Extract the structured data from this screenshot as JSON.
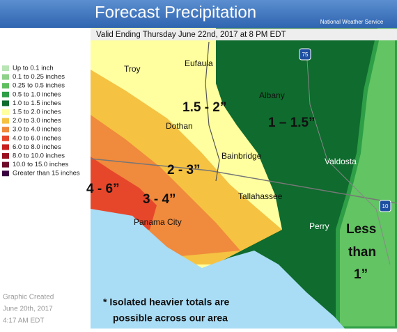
{
  "header": {
    "title": "Forecast Precipitation",
    "agency": "National Weather Service"
  },
  "subtitle": "Valid Ending Thursday June 22nd, 2017 at 8 PM EDT",
  "legend": [
    {
      "label": "Up to 0.1 inch",
      "color": "#b9e4b4"
    },
    {
      "label": "0.1 to 0.25 inches",
      "color": "#8fd18a"
    },
    {
      "label": "0.25 to 0.5 inches",
      "color": "#5fbf5f"
    },
    {
      "label": "0.5 to 1.0 inches",
      "color": "#2e9e47"
    },
    {
      "label": "1.0 to 1.5 inches",
      "color": "#0f6b2e"
    },
    {
      "label": "1.5 to 2.0 inches",
      "color": "#ffffa0"
    },
    {
      "label": "2.0 to 3.0 inches",
      "color": "#f5c242"
    },
    {
      "label": "3.0 to 4.0 inches",
      "color": "#f08a3c"
    },
    {
      "label": "4.0 to 6.0 inches",
      "color": "#e6472b"
    },
    {
      "label": "6.0 to 8.0 inches",
      "color": "#c81e1e"
    },
    {
      "label": "8.0 to 10.0 inches",
      "color": "#9b1020"
    },
    {
      "label": "10.0 to 15.0 inches",
      "color": "#6e0a2a"
    },
    {
      "label": "Greater than 15 inches",
      "color": "#3a0040"
    }
  ],
  "cities": [
    "Troy",
    "Eufaula",
    "Albany",
    "Dothan",
    "Bainbridge",
    "Valdosta",
    "Tallahassee",
    "Panama City",
    "Perry"
  ],
  "interstates": [
    "75",
    "10"
  ],
  "regions": [
    "1.5 - 2”",
    "1 – 1.5”",
    "2 - 3”",
    "4 - 6”",
    "3 - 4”",
    "Less",
    "than",
    "1”"
  ],
  "footer": {
    "created": [
      "Graphic Created",
      "June 20th, 2017",
      "4:17 AM EDT"
    ],
    "note": [
      "* Isolated heavier totals are",
      "possible across our area"
    ]
  }
}
